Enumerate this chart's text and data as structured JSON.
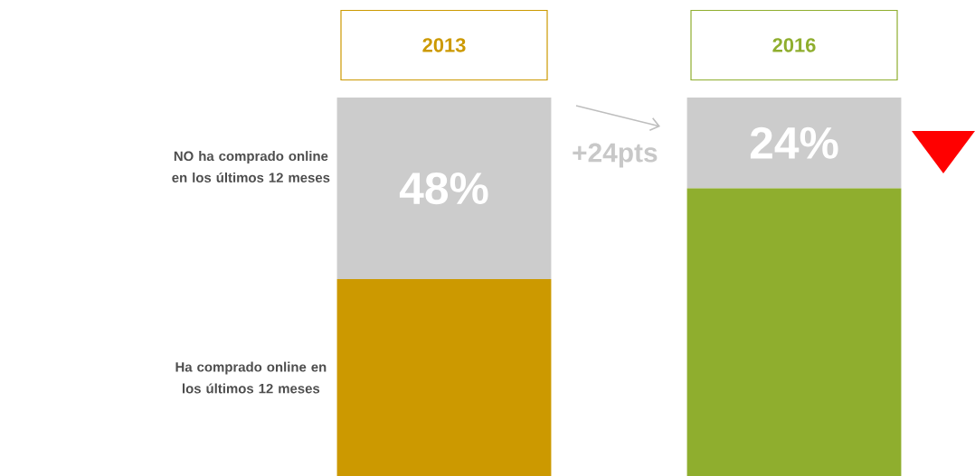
{
  "chart_data": {
    "type": "bar",
    "stacked": true,
    "categories": [
      "2013",
      "2016"
    ],
    "series": [
      {
        "name": "Ha comprado online en los últimos 12 meses",
        "colors": [
          "#cc9900",
          "#8fae2e"
        ],
        "values": [
          52,
          76
        ]
      },
      {
        "name": "NO ha comprado online en los  últimos 12 meses",
        "color": "#cccccc",
        "values": [
          48,
          24
        ],
        "value_labels": [
          "48%",
          "24%"
        ]
      }
    ],
    "ylim": [
      0,
      100
    ],
    "tick_labels": "x",
    "annotations": [
      "+24pts"
    ]
  }
}
